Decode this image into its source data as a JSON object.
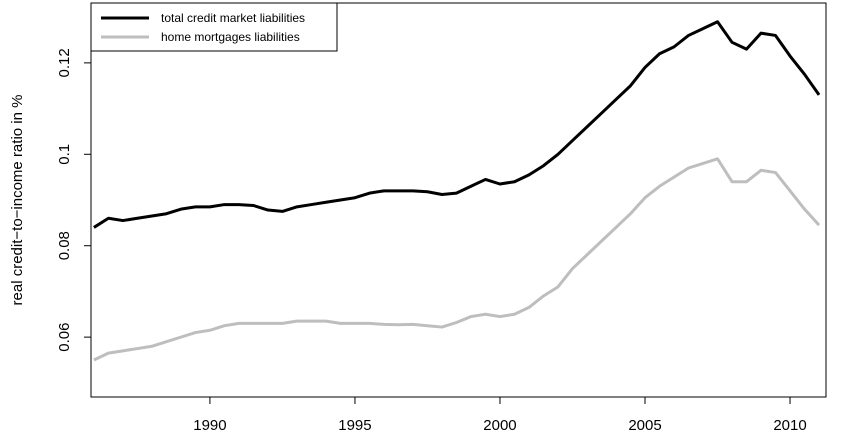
{
  "chart_data": {
    "type": "line",
    "y_label": "real credit−to−income ratio in %",
    "x": [
      1986,
      1986.5,
      1987,
      1987.5,
      1988,
      1988.5,
      1989,
      1989.5,
      1990,
      1990.5,
      1991,
      1991.5,
      1992,
      1992.5,
      1993,
      1993.5,
      1994,
      1994.5,
      1995,
      1995.5,
      1996,
      1996.5,
      1997,
      1997.5,
      1998,
      1998.5,
      1999,
      1999.5,
      2000,
      2000.5,
      2001,
      2001.5,
      2002,
      2002.5,
      2003,
      2003.5,
      2004,
      2004.5,
      2005,
      2005.5,
      2006,
      2006.5,
      2007,
      2007.5,
      2008,
      2008.5,
      2009,
      2009.5,
      2010,
      2010.5,
      2011
    ],
    "series": [
      {
        "name": "total credit market liabilities",
        "color": "#000000",
        "values": [
          0.084,
          0.086,
          0.0855,
          0.086,
          0.0865,
          0.087,
          0.088,
          0.0885,
          0.0885,
          0.089,
          0.089,
          0.0888,
          0.0878,
          0.0875,
          0.0885,
          0.089,
          0.0895,
          0.09,
          0.0905,
          0.0915,
          0.092,
          0.092,
          0.092,
          0.0918,
          0.0912,
          0.0915,
          0.093,
          0.0945,
          0.0935,
          0.094,
          0.0955,
          0.0975,
          0.1,
          0.103,
          0.106,
          0.109,
          0.112,
          0.115,
          0.119,
          0.122,
          0.1235,
          0.126,
          0.1275,
          0.129,
          0.1245,
          0.123,
          0.1265,
          0.126,
          0.1215,
          0.1175,
          0.113
        ]
      },
      {
        "name": "home mortgages liabilities",
        "color": "#bebebe",
        "values": [
          0.055,
          0.0565,
          0.057,
          0.0575,
          0.058,
          0.059,
          0.06,
          0.061,
          0.0615,
          0.0625,
          0.063,
          0.063,
          0.063,
          0.063,
          0.0635,
          0.0635,
          0.0635,
          0.063,
          0.063,
          0.063,
          0.0628,
          0.0627,
          0.0628,
          0.0625,
          0.0622,
          0.0632,
          0.0645,
          0.065,
          0.0645,
          0.065,
          0.0665,
          0.069,
          0.071,
          0.075,
          0.078,
          0.081,
          0.084,
          0.087,
          0.0905,
          0.093,
          0.095,
          0.097,
          0.098,
          0.099,
          0.094,
          0.094,
          0.0965,
          0.096,
          0.092,
          0.088,
          0.0845
        ]
      }
    ],
    "xlim": [
      1985.9,
      2011.24
    ],
    "xticks": [
      1990,
      1995,
      2000,
      2005,
      2010
    ],
    "ylim": [
      0.0469,
      0.1331
    ],
    "yticks": [
      0.06,
      0.08,
      0.1,
      0.12
    ],
    "legend": "top-left"
  }
}
